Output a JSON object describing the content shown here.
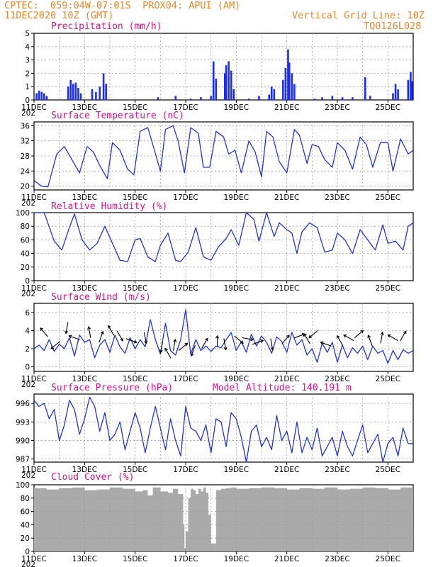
{
  "header": {
    "line1_left": "CPTEC:  059:04W-07:01S  PROX04: APUI (AM)",
    "line2_left": "11DEC2020 10Z (GMT)",
    "line1_right": "Vertical Grid Line: 10Z",
    "line2_right": "TQ0126L028"
  },
  "colors": {
    "title": "#e0108a",
    "header": "#e8872a",
    "series": "#2233dd",
    "bars": "#1a2bff",
    "cloud": "#aaaaaa",
    "grid": "#9a9a9a"
  },
  "x_axis": {
    "day_labels": [
      "11DEC",
      "13DEC",
      "15DEC",
      "17DEC",
      "19DEC",
      "21DEC",
      "23DEC",
      "25DEC"
    ],
    "cut_label": "202"
  },
  "chart_data": [
    {
      "id": "precip",
      "type": "bar",
      "title": "Precipitation (mm/h)",
      "ylim": [
        0,
        5
      ],
      "yticks": [
        0,
        1,
        2,
        3,
        4,
        5
      ],
      "x_range_days": [
        0,
        15
      ],
      "bars": [
        [
          0.1,
          0.5
        ],
        [
          0.2,
          0.7
        ],
        [
          0.3,
          0.6
        ],
        [
          0.4,
          0.5
        ],
        [
          0.5,
          0.3
        ],
        [
          1.35,
          1.0
        ],
        [
          1.45,
          1.5
        ],
        [
          1.55,
          1.2
        ],
        [
          1.65,
          1.3
        ],
        [
          1.75,
          0.9
        ],
        [
          1.85,
          0.5
        ],
        [
          2.3,
          0.8
        ],
        [
          2.45,
          0.6
        ],
        [
          2.6,
          1.0
        ],
        [
          2.75,
          2.0
        ],
        [
          2.85,
          1.2
        ],
        [
          4.9,
          0.2
        ],
        [
          5.6,
          0.3
        ],
        [
          6.2,
          0.1
        ],
        [
          6.6,
          0.2
        ],
        [
          7.0,
          0.3
        ],
        [
          7.1,
          2.9
        ],
        [
          7.2,
          1.6
        ],
        [
          7.55,
          2.0
        ],
        [
          7.6,
          2.6
        ],
        [
          7.7,
          2.9
        ],
        [
          7.8,
          2.2
        ],
        [
          7.9,
          0.8
        ],
        [
          8.5,
          0.1
        ],
        [
          8.9,
          0.3
        ],
        [
          9.3,
          0.4
        ],
        [
          9.4,
          1.0
        ],
        [
          9.5,
          0.8
        ],
        [
          9.85,
          1.5
        ],
        [
          9.95,
          2.4
        ],
        [
          10.05,
          3.8
        ],
        [
          10.1,
          2.8
        ],
        [
          10.2,
          2.0
        ],
        [
          10.3,
          1.2
        ],
        [
          11.1,
          0.1
        ],
        [
          11.4,
          0.2
        ],
        [
          11.8,
          0.3
        ],
        [
          12.2,
          0.2
        ],
        [
          12.6,
          0.2
        ],
        [
          13.1,
          1.7
        ],
        [
          13.3,
          0.3
        ],
        [
          14.2,
          0.5
        ],
        [
          14.3,
          1.2
        ],
        [
          14.4,
          0.8
        ],
        [
          14.8,
          1.5
        ],
        [
          14.9,
          2.1
        ],
        [
          14.95,
          1.4
        ]
      ]
    },
    {
      "id": "temp",
      "type": "line",
      "title": "Surface Temperature (nC)",
      "ylim": [
        19,
        37
      ],
      "yticks": [
        20,
        24,
        28,
        32,
        36
      ],
      "x_range_days": [
        0,
        15
      ],
      "x": [
        0,
        0.3,
        0.55,
        0.9,
        1.2,
        1.5,
        1.8,
        2.1,
        2.35,
        2.6,
        2.9,
        3.1,
        3.4,
        3.7,
        3.95,
        4.2,
        4.5,
        4.7,
        5.0,
        5.2,
        5.5,
        5.7,
        5.95,
        6.2,
        6.5,
        6.7,
        6.95,
        7.2,
        7.5,
        7.7,
        7.95,
        8.2,
        8.5,
        8.75,
        9.0,
        9.2,
        9.45,
        9.7,
        10.0,
        10.3,
        10.5,
        10.8,
        11.0,
        11.25,
        11.5,
        11.8,
        12.0,
        12.3,
        12.6,
        12.9,
        13.15,
        13.4,
        13.7,
        14.0,
        14.2,
        14.5,
        14.8,
        15.0
      ],
      "y": [
        21.5,
        20.0,
        19.8,
        28.5,
        30.5,
        27.0,
        23.5,
        30.5,
        29.0,
        25.5,
        22.0,
        31.5,
        29.5,
        24.5,
        23.0,
        34.5,
        35.5,
        31.0,
        24.0,
        35.0,
        36.0,
        32.0,
        23.5,
        35.5,
        34.0,
        25.0,
        25.0,
        34.5,
        33.0,
        28.5,
        29.5,
        23.5,
        32.0,
        29.0,
        22.5,
        34.5,
        33.0,
        26.5,
        23.5,
        35.0,
        33.5,
        26.0,
        31.0,
        30.5,
        27.0,
        25.0,
        31.5,
        29.5,
        24.5,
        33.0,
        31.0,
        25.0,
        31.5,
        31.5,
        24.0,
        32.5,
        28.5,
        29.5
      ]
    },
    {
      "id": "rh",
      "type": "line",
      "title": "Relative Humidity (%)",
      "ylim": [
        0,
        100
      ],
      "yticks": [
        0,
        20,
        40,
        60,
        80,
        100
      ],
      "x_range_days": [
        0,
        15
      ],
      "x": [
        0,
        0.4,
        0.8,
        1.1,
        1.4,
        1.6,
        1.9,
        2.2,
        2.5,
        2.8,
        3.1,
        3.4,
        3.7,
        4.0,
        4.2,
        4.5,
        4.8,
        5.0,
        5.3,
        5.6,
        5.8,
        6.1,
        6.4,
        6.7,
        7.0,
        7.3,
        7.6,
        7.8,
        8.1,
        8.4,
        8.7,
        8.9,
        9.2,
        9.5,
        9.7,
        10.0,
        10.2,
        10.4,
        10.6,
        10.9,
        11.2,
        11.5,
        11.8,
        12.0,
        12.3,
        12.6,
        12.9,
        13.2,
        13.5,
        13.8,
        14.0,
        14.3,
        14.6,
        14.8,
        15.0
      ],
      "y": [
        100,
        100,
        58,
        45,
        78,
        98,
        60,
        45,
        55,
        80,
        55,
        30,
        28,
        60,
        62,
        35,
        28,
        52,
        70,
        30,
        28,
        42,
        78,
        35,
        30,
        50,
        62,
        75,
        52,
        100,
        90,
        58,
        100,
        65,
        85,
        75,
        70,
        40,
        72,
        85,
        78,
        42,
        45,
        70,
        60,
        40,
        75,
        60,
        45,
        82,
        55,
        58,
        45,
        80,
        85
      ]
    },
    {
      "id": "wind",
      "type": "line",
      "title": "Surface Wind (m/s)",
      "ylim": [
        -0.5,
        7
      ],
      "yticks": [
        0,
        2,
        4,
        6
      ],
      "x_range_days": [
        0,
        15
      ],
      "x": [
        0,
        0.2,
        0.4,
        0.6,
        0.8,
        1.0,
        1.2,
        1.4,
        1.6,
        1.8,
        2.0,
        2.2,
        2.4,
        2.6,
        2.8,
        3.0,
        3.2,
        3.4,
        3.6,
        3.8,
        4.0,
        4.2,
        4.4,
        4.6,
        4.8,
        5.0,
        5.2,
        5.4,
        5.6,
        5.8,
        6.0,
        6.2,
        6.4,
        6.6,
        6.8,
        7.0,
        7.2,
        7.4,
        7.6,
        7.8,
        8.0,
        8.2,
        8.4,
        8.6,
        8.8,
        9.0,
        9.2,
        9.4,
        9.6,
        9.8,
        10.0,
        10.2,
        10.4,
        10.6,
        10.8,
        11.0,
        11.2,
        11.4,
        11.6,
        11.8,
        12.0,
        12.2,
        12.4,
        12.6,
        12.8,
        13.0,
        13.2,
        13.4,
        13.6,
        13.8,
        14.0,
        14.2,
        14.4,
        14.6,
        14.8,
        15.0
      ],
      "y": [
        2.0,
        2.4,
        1.8,
        3.0,
        1.7,
        2.5,
        2.0,
        3.2,
        1.2,
        3.5,
        2.7,
        3.0,
        1.0,
        2.4,
        3.0,
        1.6,
        3.5,
        2.2,
        1.5,
        3.2,
        2.0,
        3.0,
        2.2,
        5.2,
        3.0,
        1.4,
        4.8,
        1.8,
        1.3,
        3.0,
        6.3,
        1.4,
        3.0,
        1.8,
        2.3,
        1.7,
        2.3,
        2.1,
        3.0,
        3.8,
        1.8,
        2.8,
        1.6,
        3.6,
        2.3,
        3.4,
        2.7,
        1.5,
        3.3,
        2.8,
        1.6,
        3.8,
        2.4,
        3.0,
        1.3,
        2.0,
        0.5,
        2.6,
        1.6,
        2.7,
        0.5,
        2.4,
        1.0,
        2.1,
        1.5,
        2.3,
        0.8,
        2.3,
        1.5,
        1.8,
        0.4,
        1.8,
        0.8,
        1.9,
        1.5,
        1.8
      ],
      "arrows": [
        [
          0.4,
          3.8,
          -130
        ],
        [
          0.85,
          2.4,
          140
        ],
        [
          1.3,
          4.3,
          100
        ],
        [
          1.6,
          3.2,
          -160
        ],
        [
          2.2,
          3.8,
          -100
        ],
        [
          2.65,
          3.3,
          -70
        ],
        [
          3.05,
          4.0,
          -120
        ],
        [
          3.4,
          3.4,
          60
        ],
        [
          3.85,
          2.9,
          20
        ],
        [
          4.4,
          3.2,
          80
        ],
        [
          5.05,
          2.2,
          100
        ],
        [
          5.3,
          1.5,
          -120
        ],
        [
          5.55,
          2.4,
          -80
        ],
        [
          5.9,
          2.2,
          -40
        ],
        [
          6.3,
          1.8,
          110
        ],
        [
          6.75,
          2.6,
          -60
        ],
        [
          7.25,
          2.8,
          -90
        ],
        [
          7.55,
          2.5,
          80
        ],
        [
          8.1,
          3.0,
          40
        ],
        [
          8.45,
          3.1,
          10
        ],
        [
          8.85,
          2.7,
          -20
        ],
        [
          9.4,
          2.5,
          80
        ],
        [
          9.95,
          3.0,
          -50
        ],
        [
          10.5,
          3.4,
          -20
        ],
        [
          10.8,
          3.1,
          -120
        ],
        [
          11.05,
          3.6,
          140
        ],
        [
          11.55,
          2.5,
          -160
        ],
        [
          12.1,
          2.9,
          -120
        ],
        [
          12.45,
          3.2,
          -150
        ],
        [
          12.85,
          3.6,
          -40
        ],
        [
          13.3,
          2.9,
          -110
        ],
        [
          13.75,
          3.2,
          -80
        ],
        [
          14.2,
          3.2,
          -150
        ],
        [
          14.6,
          3.4,
          -60
        ]
      ]
    },
    {
      "id": "pressure",
      "type": "line",
      "title": "Surface Pressure (hPa)",
      "subtitle": "Model Altitude: 140.191  m",
      "ylim": [
        986.5,
        997.5
      ],
      "yticks": [
        987,
        990,
        993,
        996
      ],
      "x_range_days": [
        0,
        15
      ],
      "x": [
        0,
        0.2,
        0.4,
        0.6,
        0.8,
        1.0,
        1.2,
        1.4,
        1.6,
        1.8,
        2.0,
        2.2,
        2.4,
        2.6,
        2.8,
        3.0,
        3.2,
        3.4,
        3.6,
        3.8,
        4.0,
        4.2,
        4.4,
        4.6,
        4.8,
        5.0,
        5.2,
        5.4,
        5.6,
        5.8,
        6.0,
        6.2,
        6.4,
        6.6,
        6.8,
        7.0,
        7.2,
        7.4,
        7.6,
        7.8,
        8.0,
        8.2,
        8.4,
        8.6,
        8.8,
        9.0,
        9.2,
        9.4,
        9.6,
        9.8,
        10.0,
        10.2,
        10.4,
        10.6,
        10.8,
        11.0,
        11.2,
        11.4,
        11.6,
        11.8,
        12.0,
        12.2,
        12.4,
        12.6,
        12.8,
        13.0,
        13.2,
        13.4,
        13.6,
        13.8,
        14.0,
        14.2,
        14.4,
        14.6,
        14.8,
        15.0
      ],
      "y": [
        996.5,
        995.5,
        996.0,
        993.5,
        995.0,
        990.0,
        992.5,
        996.5,
        995.0,
        991.0,
        993.5,
        997.0,
        995.5,
        991.5,
        994.5,
        990.0,
        991.0,
        993.0,
        988.5,
        991.5,
        994.5,
        992.0,
        988.0,
        992.0,
        995.5,
        992.0,
        988.5,
        993.5,
        990.0,
        987.5,
        995.5,
        992.0,
        991.5,
        990.0,
        992.5,
        988.0,
        993.5,
        993.0,
        989.0,
        994.5,
        993.5,
        990.5,
        986.5,
        991.5,
        992.5,
        989.0,
        990.5,
        988.5,
        994.0,
        990.0,
        991.5,
        988.0,
        993.0,
        988.0,
        990.5,
        988.5,
        992.0,
        987.5,
        989.0,
        990.5,
        987.5,
        991.5,
        989.0,
        987.5,
        990.0,
        992.5,
        988.0,
        989.5,
        991.0,
        986.5,
        989.5,
        990.5,
        987.5,
        992.0,
        989.5,
        989.5
      ]
    },
    {
      "id": "cloud",
      "type": "area",
      "title": "Cloud Cover (%)",
      "ylim": [
        0,
        100
      ],
      "yticks": [
        0,
        20,
        40,
        60,
        80,
        100
      ],
      "x_range_days": [
        0,
        15
      ],
      "x": [
        0,
        0.5,
        1.0,
        1.5,
        2.0,
        2.5,
        3.0,
        3.5,
        4.0,
        4.3,
        4.5,
        4.7,
        5.0,
        5.3,
        5.5,
        5.7,
        5.9,
        5.95,
        6.0,
        6.1,
        6.2,
        6.3,
        6.4,
        6.5,
        6.6,
        6.7,
        6.8,
        6.9,
        7.0,
        7.2,
        7.4,
        7.6,
        7.8,
        8.0,
        8.5,
        9.0,
        9.5,
        10.0,
        10.5,
        11.0,
        11.5,
        12.0,
        12.5,
        13.0,
        13.5,
        14.0,
        14.5,
        15.0
      ],
      "y": [
        95,
        93,
        95,
        96,
        92,
        93,
        96,
        94,
        90,
        92,
        84,
        96,
        90,
        88,
        94,
        86,
        40,
        5,
        30,
        80,
        94,
        92,
        86,
        94,
        90,
        96,
        88,
        55,
        12,
        92,
        94,
        95,
        96,
        94,
        95,
        96,
        95,
        93,
        95,
        94,
        96,
        93,
        94,
        96,
        95,
        93,
        96,
        97
      ]
    }
  ]
}
